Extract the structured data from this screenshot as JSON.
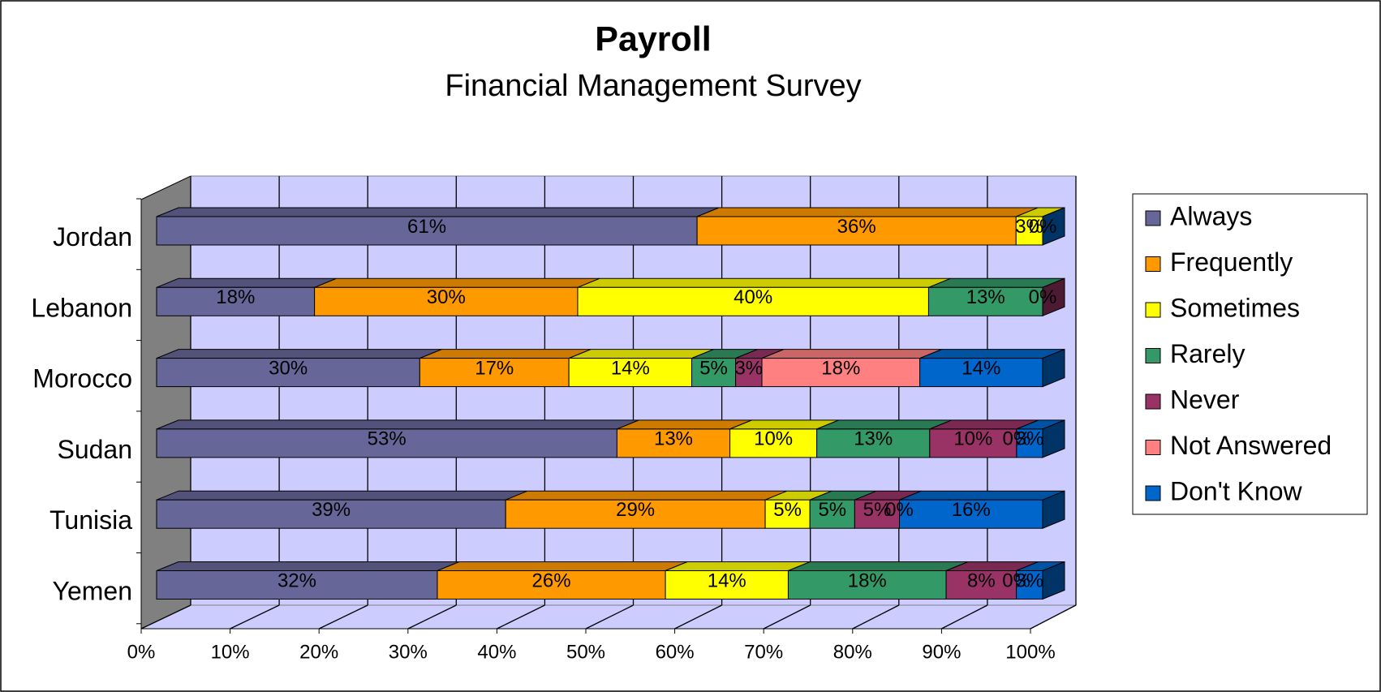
{
  "chart_data": {
    "type": "bar3d_stacked_percent_horizontal",
    "title": "Payroll",
    "subtitle": "Financial Management Survey",
    "categories": [
      "Jordan",
      "Lebanon",
      "Morocco",
      "Sudan",
      "Tunisia",
      "Yemen"
    ],
    "series": [
      {
        "name": "Always",
        "color": "#666699",
        "values": [
          61,
          18,
          30,
          53,
          39,
          32
        ]
      },
      {
        "name": "Frequently",
        "color": "#ff9900",
        "values": [
          36,
          30,
          17,
          13,
          29,
          26
        ]
      },
      {
        "name": "Sometimes",
        "color": "#ffff00",
        "values": [
          3,
          40,
          14,
          10,
          5,
          14
        ]
      },
      {
        "name": "Rarely",
        "color": "#339966",
        "values": [
          null,
          13,
          5,
          13,
          5,
          18
        ]
      },
      {
        "name": "Never",
        "color": "#993366",
        "values": [
          null,
          0,
          3,
          10,
          5,
          8
        ]
      },
      {
        "name": "Not Answered",
        "color": "#ff8080",
        "values": [
          null,
          null,
          18,
          0,
          0,
          0
        ]
      },
      {
        "name": "Don't Know",
        "color": "#0066cc",
        "values": [
          0,
          null,
          14,
          3,
          16,
          3
        ]
      }
    ],
    "value_labels": [
      [
        "61%",
        "18%",
        "30%",
        "53%",
        "39%",
        "32%"
      ],
      [
        "36%",
        "30%",
        "17%",
        "13%",
        "29%",
        "26%"
      ],
      [
        "3%",
        "40%",
        "14%",
        "10%",
        "5%",
        "14%"
      ],
      [
        null,
        "13%",
        "5%",
        "13%",
        "5%",
        "18%"
      ],
      [
        null,
        "0%",
        "3%",
        "10%",
        "5%",
        "8%"
      ],
      [
        null,
        null,
        "18%",
        "0%",
        "0%",
        "0%"
      ],
      [
        "0%",
        null,
        "14%",
        "3%",
        "16%",
        "3%"
      ]
    ],
    "xlim": [
      0,
      100
    ],
    "xticks": [
      {
        "value": 0,
        "label": "0%"
      },
      {
        "value": 10,
        "label": "10%"
      },
      {
        "value": 20,
        "label": "20%"
      },
      {
        "value": 30,
        "label": "30%"
      },
      {
        "value": 40,
        "label": "40%"
      },
      {
        "value": 50,
        "label": "50%"
      },
      {
        "value": 60,
        "label": "60%"
      },
      {
        "value": 70,
        "label": "70%"
      },
      {
        "value": 80,
        "label": "80%"
      },
      {
        "value": 90,
        "label": "90%"
      },
      {
        "value": 100,
        "label": "100%"
      }
    ],
    "grid": true,
    "legend": "right"
  }
}
